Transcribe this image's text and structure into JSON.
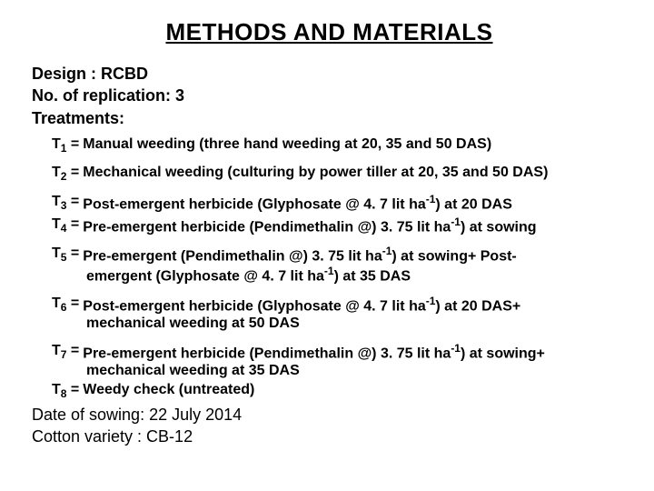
{
  "title": "METHODS AND MATERIALS",
  "design": "Design : RCBD",
  "replication": "No. of replication: 3",
  "treatments_label": "Treatments:",
  "t1_label": "T",
  "t1_sub": "1",
  "t1_eq": " = ",
  "t1_text": "Manual weeding (three hand weeding at 20, 35 and 50 DAS)",
  "t2_label": "T",
  "t2_sub": "2",
  "t2_eq": " = ",
  "t2_text": "Mechanical weeding (culturing by power tiller at 20, 35 and 50 DAS)",
  "t3_label": "T",
  "t3_sub": "3",
  "t3_eq": " = ",
  "t3_pre": "Post-emergent herbicide (Glyphosate @ 4. 7 lit ha",
  "t3_sup": "-1",
  "t3_post": ") at 20 DAS",
  "t4_label": "T",
  "t4_sub": "4",
  "t4_eq": " = ",
  "t4_pre": "Pre-emergent herbicide (Pendimethalin @) 3. 75 lit ha",
  "t4_sup": "-1",
  "t4_post": ") at sowing",
  "t5_label": "T",
  "t5_sub": "5",
  "t5_eq": " = ",
  "t5_pre": "Pre-emergent (Pendimethalin @) 3. 75 lit ha",
  "t5_sup": "-1",
  "t5_mid": ") at sowing+ Post-",
  "t5_cont_pre": "emergent (Glyphosate @ 4. 7 lit ha",
  "t5_cont_sup": "-1",
  "t5_cont_post": ") at 35 DAS",
  "t6_label": "T",
  "t6_sub": "6",
  "t6_eq": " = ",
  "t6_pre": "Post-emergent herbicide (Glyphosate @ 4. 7 lit ha",
  "t6_sup": "-1",
  "t6_post": ") at 20 DAS+",
  "t6_cont": "mechanical weeding at 50 DAS",
  "t7_label": "T",
  "t7_sub": "7",
  "t7_eq": " = ",
  "t7_pre": "Pre-emergent herbicide (Pendimethalin @) 3. 75 lit ha",
  "t7_sup": "-1",
  "t7_post": ") at sowing+",
  "t7_cont": "mechanical weeding at 35 DAS",
  "t8_label": "T",
  "t8_sub": "8",
  "t8_eq": " = ",
  "t8_text": "Weedy check (untreated)",
  "sowing_date": "Date of sowing: 22 July 2014",
  "variety": "Cotton variety : CB-12",
  "style": {
    "background_color": "#ffffff",
    "text_color": "#000000",
    "title_fontsize": 26,
    "body_fontsize": 18,
    "treatment_fontsize": 16,
    "font_family": "Arial"
  }
}
